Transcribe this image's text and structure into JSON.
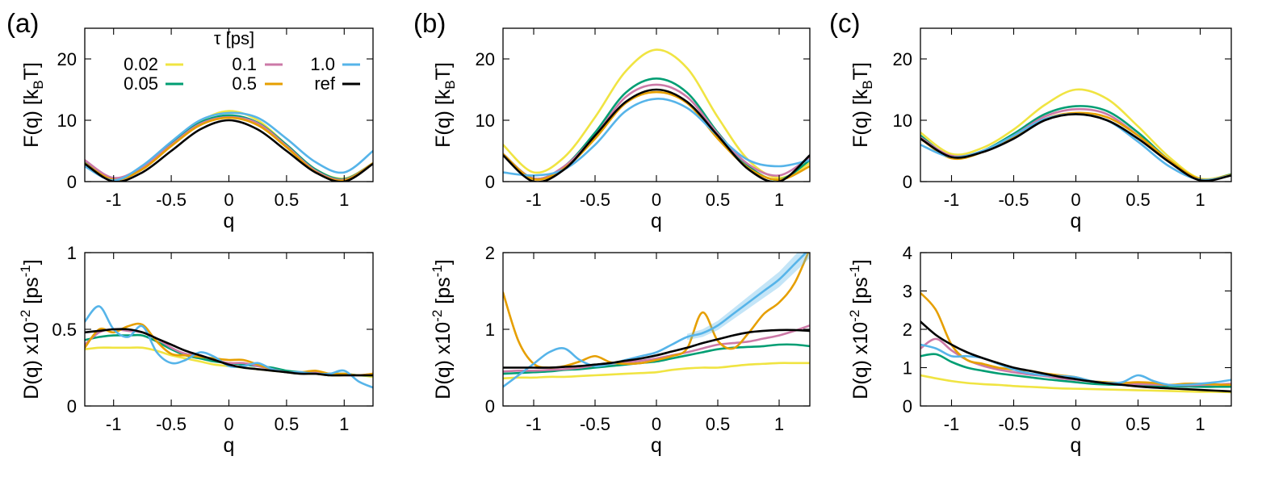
{
  "colors": {
    "0.02": "#f0e442",
    "0.05": "#009e73",
    "0.1": "#cc79a7",
    "0.5": "#e69f00",
    "1.0": "#56b4e9",
    "ref": "#000000"
  },
  "legend": {
    "title": "τ [ps]",
    "entries": [
      {
        "key": "0.02",
        "label": "0.02"
      },
      {
        "key": "0.1",
        "label": "0.1"
      },
      {
        "key": "1.0",
        "label": "1.0"
      },
      {
        "key": "0.05",
        "label": "0.05"
      },
      {
        "key": "0.5",
        "label": "0.5"
      },
      {
        "key": "ref",
        "label": "ref"
      }
    ]
  },
  "chart_data": [
    {
      "id": "a-top",
      "panel_label": "(a)",
      "type": "line",
      "xlabel": "q",
      "ylabel": "F(q) [k_BT]",
      "xlim": [
        -1.25,
        1.25
      ],
      "ylim": [
        0,
        25
      ],
      "xticks": [
        "-1",
        "-0.5",
        "0",
        "0.5",
        "1"
      ],
      "xtick_values": [
        -1,
        -0.5,
        0,
        0.5,
        1
      ],
      "yticks": [
        "0",
        "10",
        "20"
      ],
      "ytick_values": [
        0,
        10,
        20
      ],
      "x": [
        -1.25,
        -1.0,
        -0.75,
        -0.5,
        -0.25,
        0.0,
        0.25,
        0.5,
        0.75,
        1.0,
        1.25
      ],
      "series": [
        {
          "key": "0.02",
          "values": [
            3.0,
            0.5,
            2.2,
            6.0,
            9.8,
            11.5,
            10.0,
            6.0,
            2.0,
            0.5,
            3.0
          ]
        },
        {
          "key": "0.05",
          "values": [
            3.2,
            0.4,
            2.4,
            6.2,
            9.6,
            10.8,
            9.6,
            6.0,
            2.0,
            0.4,
            3.0
          ]
        },
        {
          "key": "0.1",
          "values": [
            3.5,
            0.6,
            2.4,
            6.0,
            9.4,
            10.5,
            9.5,
            5.8,
            1.8,
            0.3,
            3.0
          ]
        },
        {
          "key": "0.5",
          "values": [
            3.0,
            0.3,
            2.0,
            5.8,
            9.2,
            10.4,
            9.2,
            5.6,
            1.6,
            0.2,
            3.0
          ]
        },
        {
          "key": "1.0",
          "values": [
            2.5,
            0.2,
            2.6,
            6.5,
            10.0,
            11.2,
            10.4,
            7.0,
            3.2,
            1.5,
            5.0
          ]
        },
        {
          "key": "ref",
          "values": [
            2.9,
            0.0,
            1.5,
            5.0,
            8.5,
            10.0,
            8.5,
            5.0,
            1.5,
            0.0,
            2.9
          ]
        }
      ]
    },
    {
      "id": "b-top",
      "panel_label": "(b)",
      "type": "line",
      "xlabel": "q",
      "ylabel": "F(q) [k_BT]",
      "xlim": [
        -1.25,
        1.25
      ],
      "ylim": [
        0,
        25
      ],
      "xticks": [
        "-1",
        "-0.5",
        "0",
        "0.5",
        "1"
      ],
      "xtick_values": [
        -1,
        -0.5,
        0,
        0.5,
        1
      ],
      "yticks": [
        "0",
        "10",
        "20"
      ],
      "ytick_values": [
        0,
        10,
        20
      ],
      "x": [
        -1.25,
        -1.0,
        -0.75,
        -0.5,
        -0.25,
        0.0,
        0.25,
        0.5,
        0.75,
        1.0,
        1.25
      ],
      "series": [
        {
          "key": "0.02",
          "values": [
            6.0,
            1.5,
            4.0,
            10.5,
            18.0,
            21.5,
            18.5,
            10.5,
            3.5,
            0.6,
            3.0
          ]
        },
        {
          "key": "0.05",
          "values": [
            4.5,
            0.5,
            2.5,
            8.0,
            14.5,
            16.8,
            14.5,
            8.0,
            2.5,
            0.3,
            3.5
          ]
        },
        {
          "key": "0.1",
          "values": [
            4.5,
            0.5,
            2.5,
            7.5,
            13.8,
            15.8,
            13.8,
            7.8,
            2.8,
            1.0,
            4.0
          ]
        },
        {
          "key": "0.5",
          "values": [
            4.5,
            0.4,
            2.2,
            7.0,
            12.8,
            14.6,
            12.8,
            7.0,
            2.2,
            0.3,
            2.5
          ]
        },
        {
          "key": "1.0",
          "values": [
            1.5,
            1.0,
            2.0,
            6.0,
            11.5,
            13.5,
            12.0,
            7.5,
            3.5,
            2.5,
            3.5
          ]
        },
        {
          "key": "ref",
          "values": [
            4.3,
            0.0,
            2.0,
            7.5,
            13.0,
            15.0,
            13.0,
            7.5,
            2.0,
            0.0,
            4.3
          ]
        }
      ]
    },
    {
      "id": "c-top",
      "panel_label": "(c)",
      "type": "line",
      "xlabel": "q",
      "ylabel": "F(q) [k_BT]",
      "xlim": [
        -1.25,
        1.25
      ],
      "ylim": [
        0,
        25
      ],
      "xticks": [
        "-1",
        "-0.5",
        "0",
        "0.5",
        "1"
      ],
      "xtick_values": [
        -1,
        -0.5,
        0,
        0.5,
        1
      ],
      "yticks": [
        "0",
        "10",
        "20"
      ],
      "ytick_values": [
        0,
        10,
        20
      ],
      "x": [
        -1.25,
        -1.0,
        -0.75,
        -0.5,
        -0.25,
        0.0,
        0.25,
        0.5,
        0.75,
        1.0,
        1.25
      ],
      "series": [
        {
          "key": "0.02",
          "values": [
            8.0,
            4.5,
            5.5,
            8.5,
            12.5,
            15.0,
            13.5,
            9.0,
            4.0,
            0.5,
            1.2
          ]
        },
        {
          "key": "0.05",
          "values": [
            7.5,
            4.0,
            5.0,
            7.8,
            11.0,
            12.3,
            11.5,
            8.0,
            3.5,
            0.3,
            1.2
          ]
        },
        {
          "key": "0.1",
          "values": [
            7.2,
            4.2,
            5.0,
            7.5,
            10.6,
            11.8,
            11.0,
            7.5,
            3.2,
            0.3,
            1.1
          ]
        },
        {
          "key": "0.5",
          "values": [
            7.0,
            3.8,
            4.8,
            7.2,
            10.2,
            11.2,
            10.5,
            7.5,
            3.5,
            0.4,
            1.1
          ]
        },
        {
          "key": "1.0",
          "values": [
            6.0,
            4.0,
            5.0,
            7.5,
            10.2,
            11.0,
            10.0,
            6.5,
            2.5,
            0.3,
            1.0
          ]
        },
        {
          "key": "ref",
          "values": [
            7.0,
            4.0,
            4.8,
            7.0,
            10.0,
            11.0,
            10.0,
            7.0,
            3.2,
            0.2,
            1.0
          ]
        }
      ]
    },
    {
      "id": "a-bottom",
      "type": "line",
      "xlabel": "q",
      "ylabel": "D(q) x10^-2 [ps^-1]",
      "xlim": [
        -1.25,
        1.25
      ],
      "ylim": [
        0,
        1
      ],
      "xticks": [
        "-1",
        "-0.5",
        "0",
        "0.5",
        "1"
      ],
      "xtick_values": [
        -1,
        -0.5,
        0,
        0.5,
        1
      ],
      "yticks": [
        "0",
        "0.5",
        "1"
      ],
      "ytick_values": [
        0,
        0.5,
        1
      ],
      "x": [
        -1.25,
        -1.125,
        -1.0,
        -0.875,
        -0.75,
        -0.625,
        -0.5,
        -0.375,
        -0.25,
        -0.125,
        0.0,
        0.125,
        0.25,
        0.375,
        0.5,
        0.625,
        0.75,
        0.875,
        1.0,
        1.125,
        1.25
      ],
      "series": [
        {
          "key": "0.02",
          "values": [
            0.37,
            0.38,
            0.38,
            0.38,
            0.38,
            0.36,
            0.33,
            0.31,
            0.29,
            0.27,
            0.26,
            0.25,
            0.24,
            0.23,
            0.22,
            0.21,
            0.21,
            0.2,
            0.2,
            0.2,
            0.19
          ]
        },
        {
          "key": "0.05",
          "values": [
            0.43,
            0.45,
            0.46,
            0.46,
            0.46,
            0.42,
            0.37,
            0.33,
            0.31,
            0.29,
            0.28,
            0.27,
            0.26,
            0.25,
            0.23,
            0.22,
            0.22,
            0.21,
            0.21,
            0.2,
            0.2
          ]
        },
        {
          "key": "0.1",
          "values": [
            0.4,
            0.48,
            0.5,
            0.49,
            0.48,
            0.44,
            0.38,
            0.34,
            0.33,
            0.3,
            0.28,
            0.28,
            0.26,
            0.24,
            0.22,
            0.22,
            0.22,
            0.21,
            0.2,
            0.2,
            0.21
          ]
        },
        {
          "key": "0.5",
          "values": [
            0.38,
            0.5,
            0.48,
            0.52,
            0.53,
            0.42,
            0.34,
            0.33,
            0.32,
            0.31,
            0.3,
            0.3,
            0.27,
            0.24,
            0.22,
            0.22,
            0.23,
            0.21,
            0.21,
            0.2,
            0.21
          ]
        },
        {
          "key": "1.0",
          "values": [
            0.55,
            0.65,
            0.5,
            0.45,
            0.52,
            0.35,
            0.28,
            0.3,
            0.35,
            0.32,
            0.26,
            0.26,
            0.28,
            0.24,
            0.22,
            0.22,
            0.21,
            0.21,
            0.23,
            0.16,
            0.12
          ]
        },
        {
          "key": "ref",
          "values": [
            0.48,
            0.49,
            0.5,
            0.5,
            0.48,
            0.44,
            0.4,
            0.36,
            0.33,
            0.3,
            0.27,
            0.25,
            0.24,
            0.23,
            0.22,
            0.21,
            0.21,
            0.2,
            0.2,
            0.2,
            0.2
          ]
        }
      ]
    },
    {
      "id": "b-bottom",
      "type": "line",
      "xlabel": "q",
      "ylabel": "D(q) x10^-2 [ps^-1]",
      "xlim": [
        -1.25,
        1.25
      ],
      "ylim": [
        0,
        2
      ],
      "xticks": [
        "-1",
        "-0.5",
        "0",
        "0.5",
        "1"
      ],
      "xtick_values": [
        -1,
        -0.5,
        0,
        0.5,
        1
      ],
      "yticks": [
        "0",
        "1",
        "2"
      ],
      "ytick_values": [
        0,
        1,
        2
      ],
      "x": [
        -1.25,
        -1.125,
        -1.0,
        -0.875,
        -0.75,
        -0.625,
        -0.5,
        -0.375,
        -0.25,
        -0.125,
        0.0,
        0.125,
        0.25,
        0.375,
        0.5,
        0.625,
        0.75,
        0.875,
        1.0,
        1.125,
        1.25
      ],
      "series": [
        {
          "key": "0.02",
          "values": [
            0.36,
            0.37,
            0.37,
            0.38,
            0.38,
            0.39,
            0.4,
            0.41,
            0.42,
            0.43,
            0.44,
            0.47,
            0.49,
            0.5,
            0.5,
            0.52,
            0.54,
            0.55,
            0.56,
            0.56,
            0.56
          ]
        },
        {
          "key": "0.05",
          "values": [
            0.42,
            0.43,
            0.44,
            0.45,
            0.47,
            0.48,
            0.5,
            0.52,
            0.54,
            0.56,
            0.58,
            0.62,
            0.66,
            0.7,
            0.74,
            0.76,
            0.77,
            0.78,
            0.8,
            0.8,
            0.78
          ]
        },
        {
          "key": "0.1",
          "values": [
            0.45,
            0.46,
            0.46,
            0.47,
            0.48,
            0.5,
            0.53,
            0.55,
            0.57,
            0.59,
            0.62,
            0.66,
            0.7,
            0.75,
            0.8,
            0.82,
            0.84,
            0.88,
            0.92,
            0.98,
            1.05
          ]
        },
        {
          "key": "0.5",
          "values": [
            1.48,
            0.85,
            0.55,
            0.5,
            0.52,
            0.58,
            0.65,
            0.57,
            0.55,
            0.56,
            0.6,
            0.65,
            0.75,
            1.22,
            0.85,
            0.75,
            0.95,
            1.2,
            1.35,
            1.6,
            2.05
          ]
        },
        {
          "key": "1.0",
          "values": [
            0.25,
            0.4,
            0.55,
            0.7,
            0.75,
            0.6,
            0.52,
            0.55,
            0.6,
            0.65,
            0.7,
            0.8,
            0.9,
            0.95,
            1.05,
            1.2,
            1.35,
            1.5,
            1.65,
            1.85,
            2.05
          ]
        },
        {
          "key": "ref",
          "values": [
            0.5,
            0.5,
            0.5,
            0.5,
            0.51,
            0.52,
            0.54,
            0.56,
            0.59,
            0.62,
            0.66,
            0.71,
            0.76,
            0.82,
            0.87,
            0.92,
            0.96,
            0.98,
            0.99,
            0.99,
            0.98
          ]
        }
      ]
    },
    {
      "id": "c-bottom",
      "type": "line",
      "xlabel": "q",
      "ylabel": "D(q) x10^-2 [ps^-1]",
      "xlim": [
        -1.25,
        1.25
      ],
      "ylim": [
        0,
        4
      ],
      "xticks": [
        "-1",
        "-0.5",
        "0",
        "0.5",
        "1"
      ],
      "xtick_values": [
        -1,
        -0.5,
        0,
        0.5,
        1
      ],
      "yticks": [
        "0",
        "1",
        "2",
        "3",
        "4"
      ],
      "ytick_values": [
        0,
        1,
        2,
        3,
        4
      ],
      "x": [
        -1.25,
        -1.125,
        -1.0,
        -0.875,
        -0.75,
        -0.625,
        -0.5,
        -0.375,
        -0.25,
        -0.125,
        0.0,
        0.125,
        0.25,
        0.375,
        0.5,
        0.625,
        0.75,
        0.875,
        1.0,
        1.125,
        1.25
      ],
      "series": [
        {
          "key": "0.02",
          "values": [
            0.8,
            0.72,
            0.65,
            0.6,
            0.57,
            0.55,
            0.52,
            0.5,
            0.48,
            0.46,
            0.45,
            0.44,
            0.43,
            0.42,
            0.41,
            0.4,
            0.39,
            0.38,
            0.37,
            0.37,
            0.36
          ]
        },
        {
          "key": "0.05",
          "values": [
            1.3,
            1.35,
            1.15,
            1.0,
            0.92,
            0.85,
            0.8,
            0.75,
            0.7,
            0.66,
            0.62,
            0.58,
            0.56,
            0.55,
            0.54,
            0.53,
            0.52,
            0.51,
            0.5,
            0.5,
            0.5
          ]
        },
        {
          "key": "0.1",
          "values": [
            1.5,
            1.75,
            1.45,
            1.2,
            1.05,
            0.95,
            0.88,
            0.82,
            0.78,
            0.72,
            0.68,
            0.64,
            0.6,
            0.58,
            0.57,
            0.56,
            0.55,
            0.54,
            0.55,
            0.56,
            0.58
          ]
        },
        {
          "key": "0.5",
          "values": [
            2.95,
            2.5,
            1.6,
            1.2,
            1.1,
            1.0,
            0.95,
            0.92,
            0.85,
            0.8,
            0.75,
            0.65,
            0.62,
            0.6,
            0.62,
            0.6,
            0.55,
            0.58,
            0.58,
            0.56,
            0.55
          ]
        },
        {
          "key": "1.0",
          "values": [
            1.6,
            1.5,
            1.3,
            1.3,
            1.25,
            1.1,
            0.95,
            0.85,
            0.8,
            0.78,
            0.75,
            0.65,
            0.6,
            0.62,
            0.8,
            0.65,
            0.55,
            0.55,
            0.58,
            0.62,
            0.68
          ]
        },
        {
          "key": "ref",
          "values": [
            2.2,
            1.85,
            1.6,
            1.4,
            1.25,
            1.12,
            1.0,
            0.92,
            0.84,
            0.76,
            0.7,
            0.64,
            0.59,
            0.55,
            0.51,
            0.48,
            0.46,
            0.44,
            0.42,
            0.4,
            0.38
          ]
        }
      ]
    }
  ]
}
